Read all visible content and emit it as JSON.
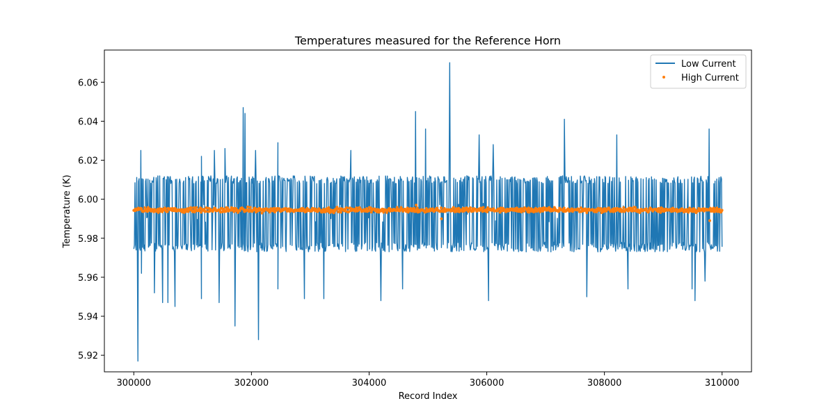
{
  "chart_data": {
    "type": "line",
    "title": "Temperatures measured for the Reference Horn",
    "xlabel": "Record Index",
    "ylabel": "Temperature (K)",
    "xlim": [
      299500,
      310500
    ],
    "ylim": [
      5.9115,
      6.0765
    ],
    "xticks": [
      300000,
      302000,
      304000,
      306000,
      308000,
      310000
    ],
    "xtick_labels": [
      "300000",
      "302000",
      "304000",
      "306000",
      "308000",
      "310000"
    ],
    "yticks": [
      5.92,
      5.94,
      5.96,
      5.98,
      6.0,
      6.02,
      6.04,
      6.06
    ],
    "ytick_labels": [
      "5.92",
      "5.94",
      "5.96",
      "5.98",
      "6.00",
      "6.02",
      "6.04",
      "6.06"
    ],
    "legend": {
      "placement": "top-right",
      "entries": [
        "Low Current",
        "High Current"
      ]
    },
    "series": [
      {
        "name": "Low Current",
        "kind": "line",
        "color": "#1f77b4",
        "x_start": 300000,
        "x_end": 310000,
        "typical_center": 5.993,
        "typical_high": 6.012,
        "typical_low": 5.973,
        "spikes": [
          {
            "x": 300070,
            "y": 5.917
          },
          {
            "x": 300130,
            "y": 5.962
          },
          {
            "x": 300120,
            "y": 6.025
          },
          {
            "x": 300350,
            "y": 5.952
          },
          {
            "x": 300490,
            "y": 5.947
          },
          {
            "x": 300580,
            "y": 5.947
          },
          {
            "x": 300700,
            "y": 5.945
          },
          {
            "x": 301150,
            "y": 5.949
          },
          {
            "x": 301150,
            "y": 6.022
          },
          {
            "x": 301450,
            "y": 5.947
          },
          {
            "x": 301370,
            "y": 6.025
          },
          {
            "x": 301550,
            "y": 6.026
          },
          {
            "x": 301720,
            "y": 5.935
          },
          {
            "x": 301860,
            "y": 6.047
          },
          {
            "x": 301890,
            "y": 6.044
          },
          {
            "x": 302070,
            "y": 6.025
          },
          {
            "x": 302120,
            "y": 5.928
          },
          {
            "x": 302450,
            "y": 6.029
          },
          {
            "x": 302450,
            "y": 5.954
          },
          {
            "x": 302900,
            "y": 5.949
          },
          {
            "x": 303230,
            "y": 5.949
          },
          {
            "x": 303690,
            "y": 6.025
          },
          {
            "x": 304200,
            "y": 5.948
          },
          {
            "x": 304570,
            "y": 5.954
          },
          {
            "x": 304790,
            "y": 6.045
          },
          {
            "x": 304960,
            "y": 6.036
          },
          {
            "x": 305370,
            "y": 6.07
          },
          {
            "x": 305870,
            "y": 6.033
          },
          {
            "x": 306030,
            "y": 5.948
          },
          {
            "x": 306110,
            "y": 6.028
          },
          {
            "x": 307320,
            "y": 6.041
          },
          {
            "x": 307700,
            "y": 5.95
          },
          {
            "x": 308210,
            "y": 6.033
          },
          {
            "x": 308400,
            "y": 5.954
          },
          {
            "x": 309490,
            "y": 5.954
          },
          {
            "x": 309710,
            "y": 5.958
          },
          {
            "x": 309540,
            "y": 5.948
          },
          {
            "x": 309780,
            "y": 6.036
          }
        ]
      },
      {
        "name": "High Current",
        "kind": "scatter",
        "color": "#ff7f0e",
        "x_start": 300000,
        "x_end": 310000,
        "center": 5.9945,
        "spread": 0.0018,
        "outliers": [
          {
            "x": 309790,
            "y": 5.989
          },
          {
            "x": 305230,
            "y": 5.99
          },
          {
            "x": 304800,
            "y": 5.997
          }
        ]
      }
    ]
  }
}
